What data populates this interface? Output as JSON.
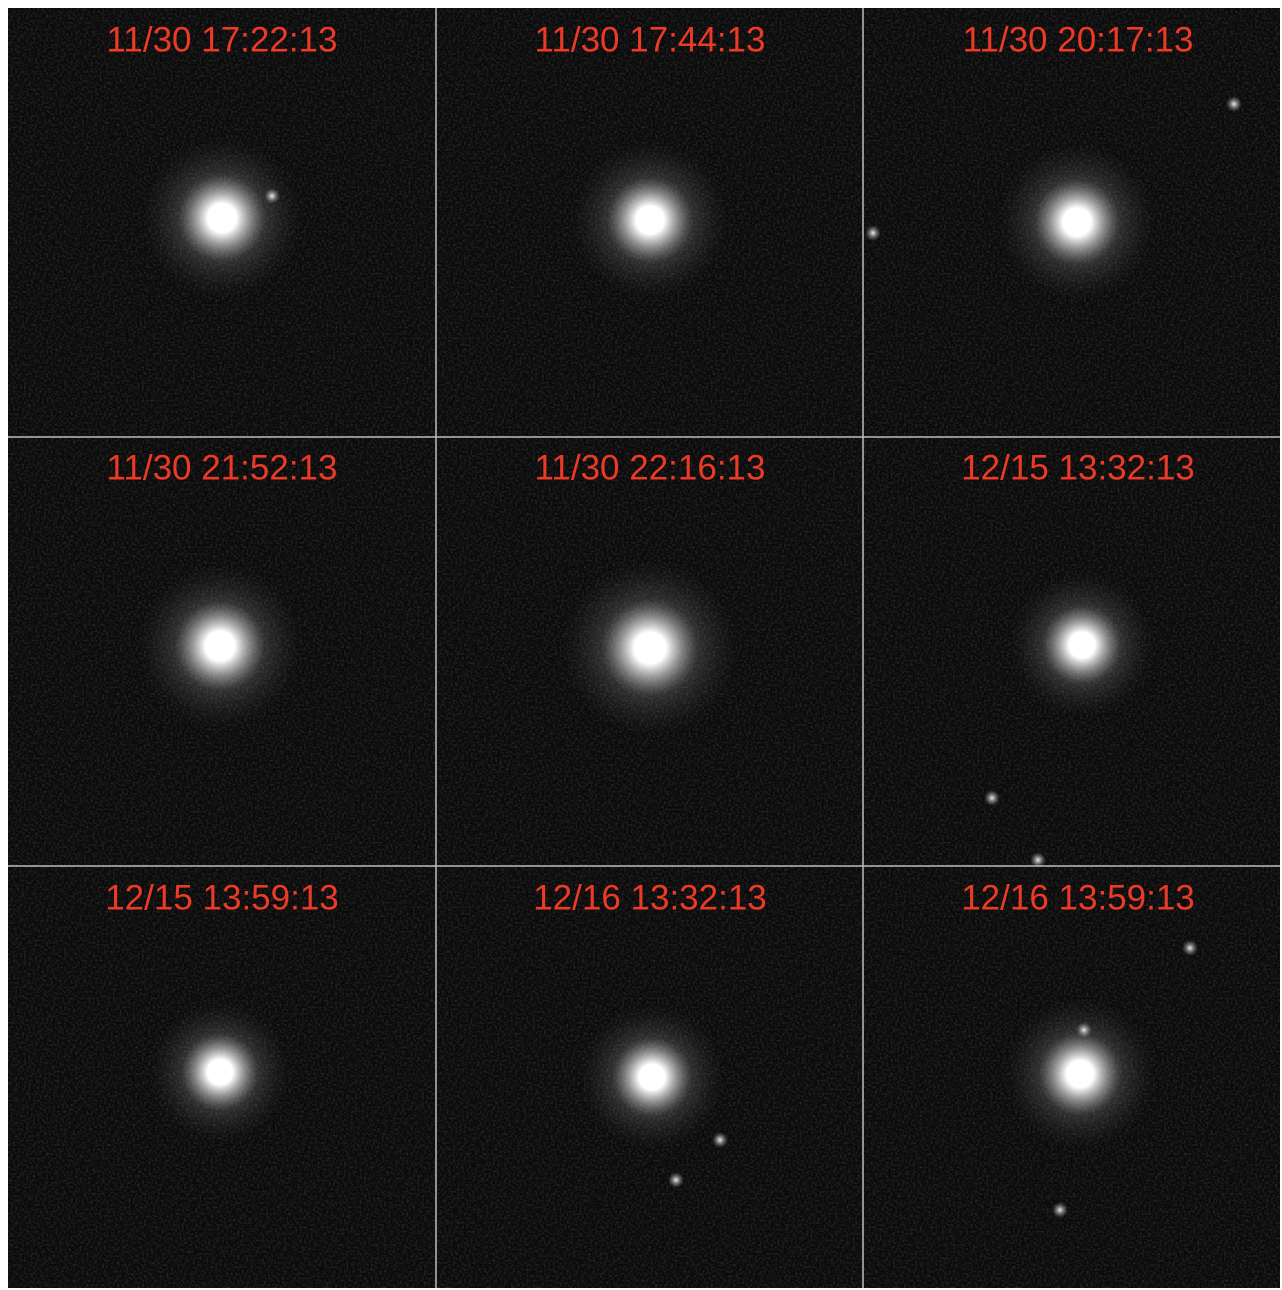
{
  "panels": [
    {
      "label": "11/30 17:22:13"
    },
    {
      "label": "11/30 17:44:13"
    },
    {
      "label": "11/30 20:17:13"
    },
    {
      "label": "11/30 21:52:13"
    },
    {
      "label": "11/30 22:16:13"
    },
    {
      "label": "12/15 13:32:13"
    },
    {
      "label": "12/15 13:59:13"
    },
    {
      "label": "12/16 13:32:13"
    },
    {
      "label": "12/16 13:59:13"
    }
  ]
}
